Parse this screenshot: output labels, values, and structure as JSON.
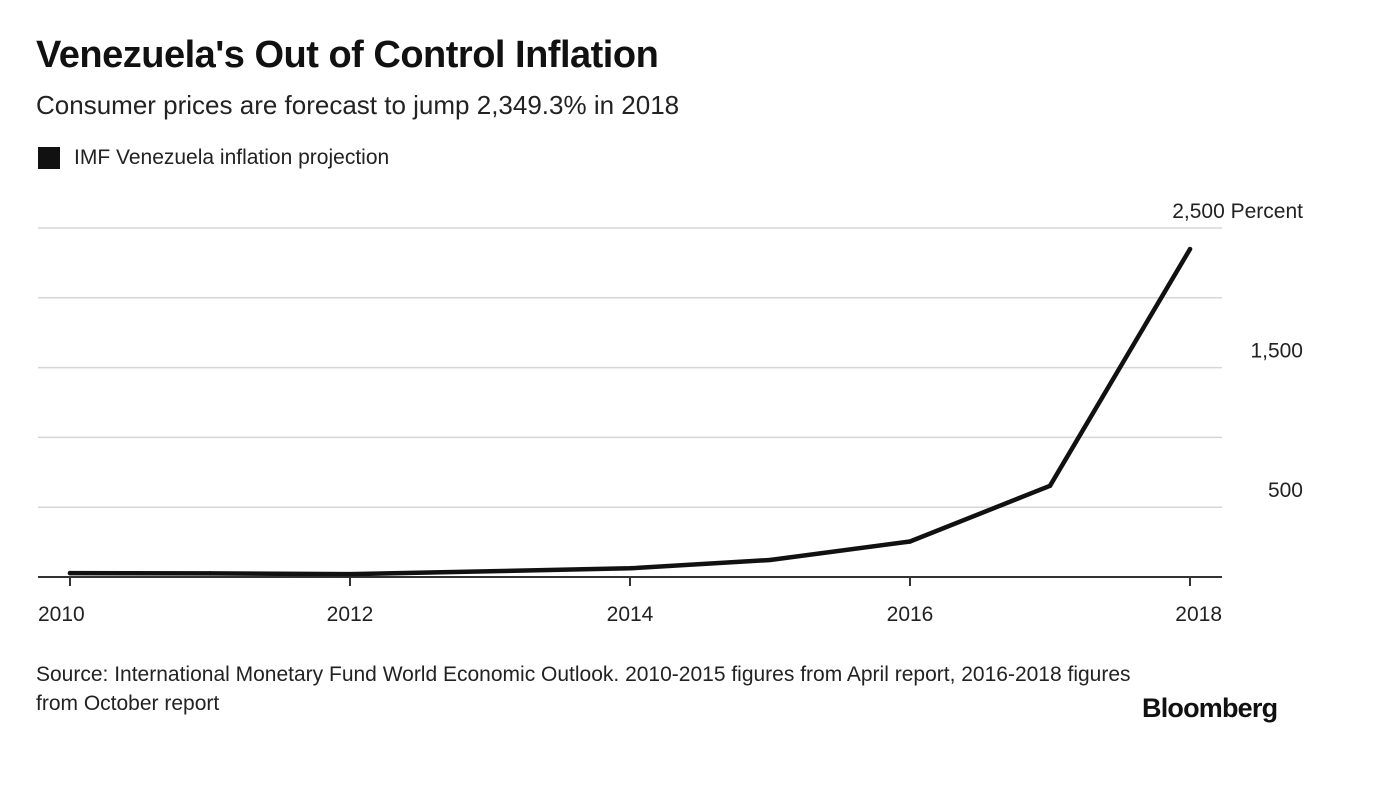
{
  "header": {
    "title": "Venezuela's Out of Control Inflation",
    "subtitle": "Consumer prices are forecast to jump 2,349.3% in 2018"
  },
  "legend": {
    "label": "IMF Venezuela inflation projection",
    "color": "#111111"
  },
  "footer": {
    "source": "Source: International Monetary Fund World Economic Outlook. 2010-2015 figures from April report, 2016-2018 figures from October report",
    "brand": "Bloomberg"
  },
  "chart_data": {
    "type": "line",
    "title": "Venezuela's Out of Control Inflation",
    "subtitle": "Consumer prices are forecast to jump 2,349.3% in 2018",
    "xlabel": "",
    "ylabel": "",
    "x": [
      2010,
      2011,
      2012,
      2013,
      2014,
      2015,
      2016,
      2017,
      2018
    ],
    "series": [
      {
        "name": "IMF Venezuela inflation projection",
        "values": [
          28,
          26,
          21,
          41,
          62,
          122,
          254,
          653,
          2349
        ],
        "color": "#111111"
      }
    ],
    "xlim": [
      2010,
      2018
    ],
    "ylim": [
      0,
      2500
    ],
    "x_ticks": [
      {
        "value": 2010,
        "label": "2010"
      },
      {
        "value": 2012,
        "label": "2012"
      },
      {
        "value": 2014,
        "label": "2014"
      },
      {
        "value": 2016,
        "label": "2016"
      },
      {
        "value": 2018,
        "label": "2018"
      }
    ],
    "y_gridlines": [
      500,
      1000,
      1500,
      2000,
      2500
    ],
    "y_ticks": [
      {
        "value": 2500,
        "label": "2,500 Percent"
      },
      {
        "value": 1500,
        "label": "1,500"
      },
      {
        "value": 500,
        "label": "500"
      }
    ],
    "grid": true,
    "legend_position": "top-left"
  }
}
